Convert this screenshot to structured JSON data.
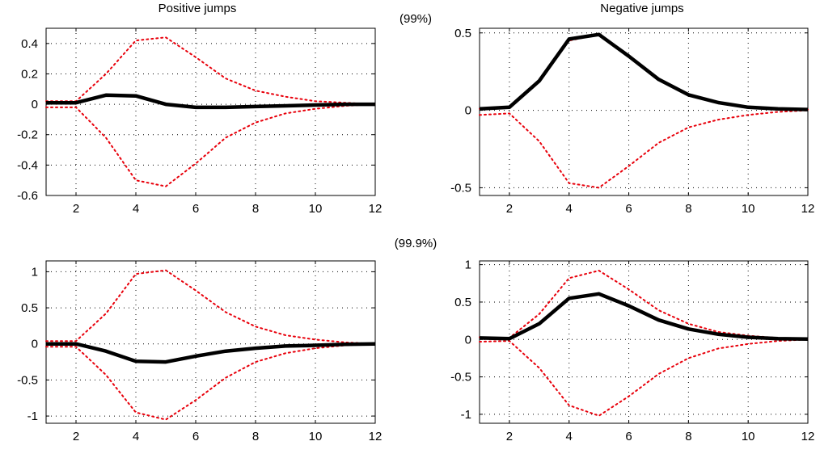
{
  "figure": {
    "title_left": "Positive jumps",
    "title_right": "Negative jumps",
    "row_labels": [
      "(99%)",
      "(99.9%)"
    ]
  },
  "colors": {
    "irf": "#000000",
    "bands": "#e8000b",
    "grid": "#000000"
  },
  "chart_data": [
    {
      "type": "line",
      "title": "Positive jumps",
      "row_label": "(99%)",
      "x": [
        1,
        2,
        3,
        4,
        5,
        6,
        7,
        8,
        9,
        10,
        11,
        12
      ],
      "xticks": [
        "2",
        "4",
        "6",
        "8",
        "10",
        "12"
      ],
      "xlim": [
        1,
        12
      ],
      "ylim": [
        -0.6,
        0.5
      ],
      "yticks": [
        "0.4",
        "0.2",
        "0",
        "-0.2",
        "-0.4",
        "-0.6"
      ],
      "grid": true,
      "series": [
        {
          "role": "response",
          "style": "solid",
          "values": [
            0.01,
            0.01,
            0.06,
            0.055,
            0.0,
            -0.02,
            -0.02,
            -0.015,
            -0.01,
            -0.005,
            0.0,
            0.0
          ]
        },
        {
          "role": "upper band",
          "style": "dotted",
          "values": [
            0.02,
            0.02,
            0.2,
            0.42,
            0.44,
            0.31,
            0.17,
            0.09,
            0.05,
            0.02,
            0.01,
            0.0
          ]
        },
        {
          "role": "lower band",
          "style": "dotted",
          "values": [
            -0.02,
            -0.02,
            -0.22,
            -0.5,
            -0.54,
            -0.39,
            -0.22,
            -0.12,
            -0.06,
            -0.03,
            -0.01,
            0.0
          ]
        }
      ]
    },
    {
      "type": "line",
      "title": "Negative jumps",
      "row_label": "(99%)",
      "x": [
        1,
        2,
        3,
        4,
        5,
        6,
        7,
        8,
        9,
        10,
        11,
        12
      ],
      "xticks": [
        "2",
        "4",
        "6",
        "8",
        "10",
        "12"
      ],
      "xlim": [
        1,
        12
      ],
      "ylim": [
        -0.55,
        0.53
      ],
      "yticks": [
        "0.5",
        "0",
        "-0.5"
      ],
      "grid": true,
      "series": [
        {
          "role": "response",
          "style": "solid",
          "values": [
            0.01,
            0.02,
            0.19,
            0.46,
            0.49,
            0.35,
            0.2,
            0.1,
            0.05,
            0.02,
            0.01,
            0.005
          ]
        },
        {
          "role": "upper band",
          "style": "dotted",
          "values": [
            0.01,
            0.02,
            0.19,
            0.45,
            0.49,
            0.35,
            0.2,
            0.1,
            0.05,
            0.02,
            0.01,
            0.005
          ]
        },
        {
          "role": "lower band",
          "style": "dotted",
          "values": [
            -0.03,
            -0.02,
            -0.2,
            -0.47,
            -0.5,
            -0.36,
            -0.21,
            -0.11,
            -0.06,
            -0.03,
            -0.01,
            0.0
          ]
        }
      ]
    },
    {
      "type": "line",
      "row_label": "(99.9%)",
      "x": [
        1,
        2,
        3,
        4,
        5,
        6,
        7,
        8,
        9,
        10,
        11,
        12
      ],
      "xticks": [
        "2",
        "4",
        "6",
        "8",
        "10",
        "12"
      ],
      "xlim": [
        1,
        12
      ],
      "ylim": [
        -1.1,
        1.15
      ],
      "yticks": [
        "1",
        "0.5",
        "0",
        "-0.5",
        "-1"
      ],
      "grid": true,
      "series": [
        {
          "role": "response",
          "style": "solid",
          "values": [
            0.0,
            0.0,
            -0.1,
            -0.24,
            -0.25,
            -0.17,
            -0.1,
            -0.06,
            -0.03,
            -0.02,
            -0.005,
            0.0
          ]
        },
        {
          "role": "upper band",
          "style": "dotted",
          "values": [
            0.04,
            0.04,
            0.42,
            0.97,
            1.02,
            0.74,
            0.44,
            0.24,
            0.12,
            0.06,
            0.02,
            0.0
          ]
        },
        {
          "role": "lower band",
          "style": "dotted",
          "values": [
            -0.04,
            -0.04,
            -0.43,
            -0.95,
            -1.05,
            -0.78,
            -0.47,
            -0.25,
            -0.13,
            -0.06,
            -0.02,
            0.0
          ]
        }
      ]
    },
    {
      "type": "line",
      "row_label": "(99.9%)",
      "x": [
        1,
        2,
        3,
        4,
        5,
        6,
        7,
        8,
        9,
        10,
        11,
        12
      ],
      "xticks": [
        "2",
        "4",
        "6",
        "8",
        "10",
        "12"
      ],
      "xlim": [
        1,
        12
      ],
      "ylim": [
        -1.12,
        1.05
      ],
      "yticks": [
        "1",
        "0.5",
        "0",
        "-0.5",
        "-1"
      ],
      "grid": true,
      "series": [
        {
          "role": "response",
          "style": "solid",
          "values": [
            0.02,
            0.01,
            0.21,
            0.55,
            0.61,
            0.45,
            0.26,
            0.14,
            0.07,
            0.03,
            0.01,
            0.005
          ]
        },
        {
          "role": "upper band",
          "style": "dotted",
          "values": [
            0.03,
            0.02,
            0.34,
            0.82,
            0.92,
            0.67,
            0.39,
            0.21,
            0.1,
            0.05,
            0.02,
            0.005
          ]
        },
        {
          "role": "lower band",
          "style": "dotted",
          "values": [
            -0.03,
            -0.02,
            -0.38,
            -0.88,
            -1.02,
            -0.76,
            -0.46,
            -0.25,
            -0.12,
            -0.06,
            -0.02,
            0.0
          ]
        }
      ]
    }
  ]
}
